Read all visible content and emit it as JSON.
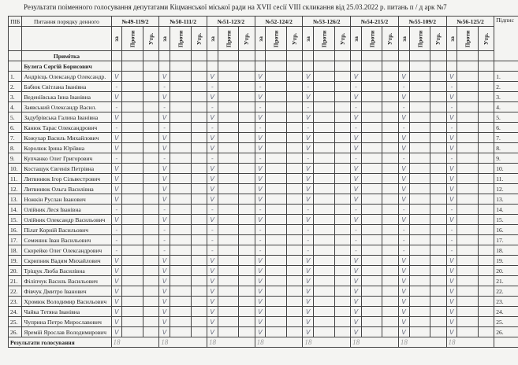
{
  "title": "Результати поіменного голосування  депутатами Кіцманської міської ради  на XVII сесії  VIII скликання  від  25.03.2022 р.  питань   п / д арк №7",
  "header": {
    "pib": "ПІБ",
    "agenda": "Питання порядку денного",
    "note": "Примітка",
    "signature": "Підпис",
    "questions": [
      "№49-119/2",
      "№50-111/2",
      "№51-123/2",
      "№52-124/2",
      "№53-126/2",
      "№54-215/2",
      "№55-109/2",
      "№56-125/2"
    ],
    "sub": [
      "за",
      "Проти",
      "Утр."
    ]
  },
  "chair": "Булега  Сергій  Борисович",
  "rows": [
    {
      "n": "1.",
      "name": "Андрієць Олександр Олександр.",
      "votes": [
        "V",
        "V",
        "V",
        "V",
        "V",
        "V",
        "V",
        "V"
      ]
    },
    {
      "n": "2.",
      "name": "Бабюк Світлана Іванівна",
      "votes": [
        "-",
        "-",
        "-",
        "-",
        "-",
        "-",
        "-",
        "-"
      ]
    },
    {
      "n": "3.",
      "name": "Веденіївська Інна Іванівна",
      "votes": [
        "V",
        "V",
        "V",
        "V",
        "V",
        "V",
        "V",
        "V"
      ]
    },
    {
      "n": "4.",
      "name": "Заявський Олександр Васил.",
      "votes": [
        "-",
        "-",
        "-",
        "-",
        "-",
        "-",
        "-",
        "-"
      ]
    },
    {
      "n": "5.",
      "name": "Задубрівська Галина Іванівна",
      "votes": [
        "V",
        "V",
        "V",
        "V",
        "V",
        "V",
        "V",
        "V"
      ]
    },
    {
      "n": "6.",
      "name": "Канюк Тарас Олександрович",
      "votes": [
        "-",
        "-",
        "-",
        "-",
        "-",
        "-",
        "-",
        "-"
      ]
    },
    {
      "n": "7.",
      "name": "Кожухар Василь Михайлович",
      "votes": [
        "V",
        "V",
        "V",
        "V",
        "V",
        "V",
        "V",
        "V"
      ]
    },
    {
      "n": "8.",
      "name": "Королюк Ірина Юріївна",
      "votes": [
        "V",
        "V",
        "V",
        "V",
        "V",
        "V",
        "V",
        "V"
      ]
    },
    {
      "n": "9.",
      "name": "Купчанко Олег Григорович",
      "votes": [
        "-",
        "-",
        "-",
        "-",
        "-",
        "-",
        "-",
        "-"
      ]
    },
    {
      "n": "10.",
      "name": "Костащук Євгенія Петрівна",
      "votes": [
        "V",
        "V",
        "V",
        "V",
        "V",
        "V",
        "V",
        "V"
      ]
    },
    {
      "n": "11.",
      "name": "Литвинюк Ігор Сільвестрович",
      "votes": [
        "V",
        "V",
        "V",
        "V",
        "V",
        "V",
        "V",
        "V"
      ]
    },
    {
      "n": "12.",
      "name": "Литвинюк Ольга Василівна",
      "votes": [
        "V",
        "V",
        "V",
        "V",
        "V",
        "V",
        "V",
        "V"
      ]
    },
    {
      "n": "13.",
      "name": "Ножкін Руслан Іванович",
      "votes": [
        "V",
        "V",
        "V",
        "V",
        "V",
        "V",
        "V",
        "V"
      ]
    },
    {
      "n": "14.",
      "name": "Олійник Леся Іванівна",
      "votes": [
        "-",
        "-",
        "-",
        "-",
        "-",
        "-",
        "-",
        "-"
      ]
    },
    {
      "n": "15.",
      "name": "Олійник Олександр Васильович",
      "votes": [
        "V",
        "V",
        "V",
        "V",
        "V",
        "V",
        "V",
        "V"
      ]
    },
    {
      "n": "16.",
      "name": "Пілат Корній Васильович",
      "votes": [
        "-",
        "-",
        "-",
        "-",
        "-",
        "-",
        "-",
        "-"
      ]
    },
    {
      "n": "17.",
      "name": "Семенюк Іван Васильович",
      "votes": [
        "-",
        "-",
        "-",
        "-",
        "-",
        "-",
        "-",
        "-"
      ]
    },
    {
      "n": "18.",
      "name": "Скорейко Олег Олександрович",
      "votes": [
        "-",
        "-",
        "-",
        "-",
        "-",
        "-",
        "-",
        "-"
      ]
    },
    {
      "n": "19.",
      "name": "Скрипник Вадим Михайлович",
      "votes": [
        "V",
        "V",
        "V",
        "V",
        "V",
        "V",
        "V",
        "V"
      ]
    },
    {
      "n": "20.",
      "name": "Тріщук Люба Василівна",
      "votes": [
        "V",
        "V",
        "V",
        "V",
        "V",
        "V",
        "V",
        "V"
      ]
    },
    {
      "n": "21.",
      "name": "Філіпчук Василь Васильович",
      "votes": [
        "V",
        "V",
        "V",
        "V",
        "V",
        "V",
        "V",
        "V"
      ]
    },
    {
      "n": "22.",
      "name": "Фівчук Дмитро Іванович",
      "votes": [
        "V",
        "V",
        "V",
        "V",
        "V",
        "V",
        "V",
        "V"
      ]
    },
    {
      "n": "23.",
      "name": "Хромюк Володимир Васильович",
      "votes": [
        "V",
        "V",
        "V",
        "V",
        "V",
        "V",
        "V",
        "V"
      ]
    },
    {
      "n": "24.",
      "name": "Чайка Тетяна Іванівна",
      "votes": [
        "V",
        "V",
        "V",
        "V",
        "V",
        "V",
        "V",
        "V"
      ]
    },
    {
      "n": "25.",
      "name": "Чуприна Петро Мирославович",
      "votes": [
        "V",
        "V",
        "V",
        "V",
        "V",
        "V",
        "V",
        "V"
      ]
    },
    {
      "n": "26.",
      "name": "Яремій Ярослав Володимирович",
      "votes": [
        "V",
        "V",
        "V",
        "V",
        "V",
        "V",
        "V",
        "V"
      ]
    }
  ],
  "results_label": "Результати голосування",
  "results": [
    "18",
    "18",
    "18",
    "18",
    "18",
    "18",
    "18",
    "18"
  ]
}
